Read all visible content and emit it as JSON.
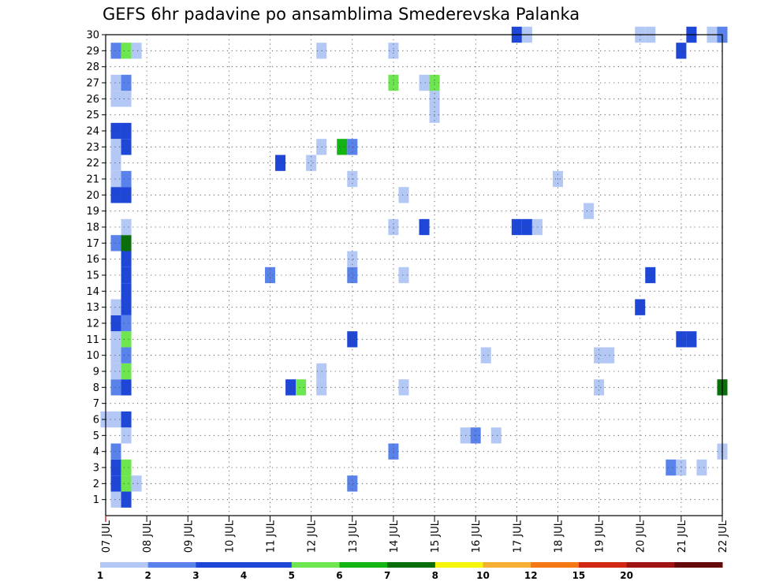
{
  "chart_data": {
    "type": "heatmap",
    "title": "GEFS 6hr padavine po ansamblima Smederevska Palanka",
    "xlabel": "",
    "ylabel": "",
    "x_ticks": [
      "07 JUL",
      "08 JUL",
      "09 JUL",
      "10 JUL",
      "11 JUL",
      "12 JUL",
      "13 JUL",
      "14 JUL",
      "15 JUL",
      "16 JUL",
      "17 JUL",
      "18 JUL",
      "19 JUL",
      "20 JUL",
      "21 JUL",
      "22 JUL"
    ],
    "xlim": [
      7,
      22
    ],
    "y_ticks": [
      1,
      2,
      3,
      4,
      5,
      6,
      7,
      8,
      9,
      10,
      11,
      12,
      13,
      14,
      15,
      16,
      17,
      18,
      19,
      20,
      21,
      22,
      23,
      24,
      25,
      26,
      27,
      28,
      29,
      30
    ],
    "ylim": [
      0,
      30
    ],
    "grid": true,
    "legend": {
      "position": "bottom",
      "labels": [
        "1",
        "2",
        "3",
        "4",
        "5",
        "6",
        "7",
        "8",
        "10",
        "12",
        "15",
        "20"
      ],
      "colors": [
        "#b4c8f5",
        "#5a82eb",
        "#1e46d7",
        "#1e46d7",
        "#6ee650",
        "#14b414",
        "#0a6e0a",
        "#f5f50a",
        "#f5af32",
        "#f57814",
        "#d22814",
        "#a01414",
        "#640a0a"
      ]
    },
    "cells_note": "each cell: [day (x, days from 07 JUL 00z), member (y), precipitation class 1-13]",
    "cells": [
      [
        7.25,
        1,
        1
      ],
      [
        7.5,
        1,
        3
      ],
      [
        7.25,
        2,
        3
      ],
      [
        7.5,
        2,
        5
      ],
      [
        7.75,
        2,
        1
      ],
      [
        13.0,
        2,
        2
      ],
      [
        7.25,
        3,
        3
      ],
      [
        7.5,
        3,
        5
      ],
      [
        20.75,
        3,
        2
      ],
      [
        21.0,
        3,
        1
      ],
      [
        21.5,
        3,
        1
      ],
      [
        7.25,
        4,
        2
      ],
      [
        14.0,
        4,
        2
      ],
      [
        22.0,
        4,
        1
      ],
      [
        7.5,
        5,
        1
      ],
      [
        15.75,
        5,
        1
      ],
      [
        16.0,
        5,
        2
      ],
      [
        16.5,
        5,
        1
      ],
      [
        7.0,
        6,
        1
      ],
      [
        7.25,
        6,
        1
      ],
      [
        7.5,
        6,
        4
      ],
      [
        7.25,
        8,
        2
      ],
      [
        7.5,
        8,
        4
      ],
      [
        11.5,
        8,
        4
      ],
      [
        11.75,
        8,
        5
      ],
      [
        12.25,
        8,
        1
      ],
      [
        14.25,
        8,
        1
      ],
      [
        19.0,
        8,
        1
      ],
      [
        22.0,
        8,
        7
      ],
      [
        7.25,
        9,
        1
      ],
      [
        7.5,
        9,
        5
      ],
      [
        12.25,
        9,
        1
      ],
      [
        7.25,
        10,
        1
      ],
      [
        7.5,
        10,
        2
      ],
      [
        16.25,
        10,
        1
      ],
      [
        19.0,
        10,
        1
      ],
      [
        19.25,
        10,
        1
      ],
      [
        7.25,
        11,
        1
      ],
      [
        7.5,
        11,
        5
      ],
      [
        13.0,
        11,
        3
      ],
      [
        21.0,
        11,
        3
      ],
      [
        21.25,
        11,
        3
      ],
      [
        7.25,
        12,
        3
      ],
      [
        7.5,
        12,
        2
      ],
      [
        7.25,
        13,
        1
      ],
      [
        7.5,
        13,
        4
      ],
      [
        20.0,
        13,
        3
      ],
      [
        7.5,
        14,
        3
      ],
      [
        7.5,
        15,
        4
      ],
      [
        11.0,
        15,
        2
      ],
      [
        13.0,
        15,
        2
      ],
      [
        14.25,
        15,
        1
      ],
      [
        20.25,
        15,
        3
      ],
      [
        7.5,
        16,
        4
      ],
      [
        13.0,
        16,
        1
      ],
      [
        7.25,
        17,
        2
      ],
      [
        7.5,
        17,
        7
      ],
      [
        7.5,
        18,
        1
      ],
      [
        14.0,
        18,
        1
      ],
      [
        14.75,
        18,
        3
      ],
      [
        17.0,
        18,
        3
      ],
      [
        17.25,
        18,
        3
      ],
      [
        17.5,
        18,
        1
      ],
      [
        18.75,
        19,
        1
      ],
      [
        7.25,
        20,
        3
      ],
      [
        7.5,
        20,
        4
      ],
      [
        14.25,
        20,
        1
      ],
      [
        7.25,
        21,
        1
      ],
      [
        7.5,
        21,
        2
      ],
      [
        13.0,
        21,
        1
      ],
      [
        18.0,
        21,
        1
      ],
      [
        7.25,
        22,
        1
      ],
      [
        11.25,
        22,
        3
      ],
      [
        12.0,
        22,
        1
      ],
      [
        7.25,
        23,
        1
      ],
      [
        7.5,
        23,
        4
      ],
      [
        12.25,
        23,
        1
      ],
      [
        12.75,
        23,
        6
      ],
      [
        13.0,
        23,
        2
      ],
      [
        7.25,
        24,
        4
      ],
      [
        7.5,
        24,
        4
      ],
      [
        15.0,
        25,
        1
      ],
      [
        7.25,
        26,
        1
      ],
      [
        7.5,
        26,
        1
      ],
      [
        15.0,
        26,
        1
      ],
      [
        7.25,
        27,
        1
      ],
      [
        7.5,
        27,
        2
      ],
      [
        14.0,
        27,
        5
      ],
      [
        14.75,
        27,
        1
      ],
      [
        15.0,
        27,
        5
      ],
      [
        7.25,
        29,
        2
      ],
      [
        7.5,
        29,
        5
      ],
      [
        7.75,
        29,
        1
      ],
      [
        12.25,
        29,
        1
      ],
      [
        14.0,
        29,
        1
      ],
      [
        21.0,
        29,
        3
      ],
      [
        17.0,
        30,
        3
      ],
      [
        17.25,
        30,
        1
      ],
      [
        20.0,
        30,
        1
      ],
      [
        20.25,
        30,
        1
      ],
      [
        21.25,
        30,
        3
      ],
      [
        21.75,
        30,
        1
      ],
      [
        22.0,
        30,
        2
      ]
    ]
  }
}
